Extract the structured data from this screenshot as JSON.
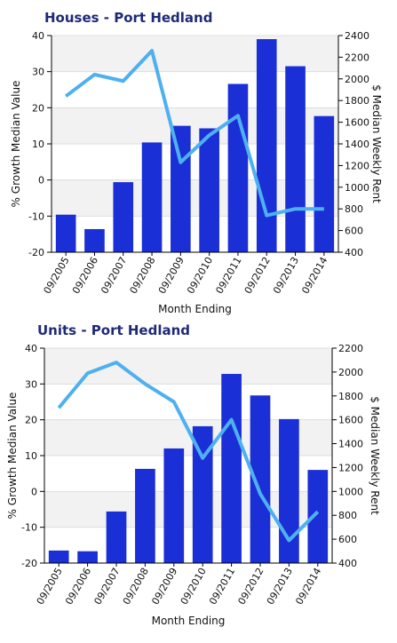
{
  "colors": {
    "bar": "#1a2fd6",
    "line": "#4fb0f0",
    "title": "#1e2a78",
    "band": "#f2f2f2",
    "grid": "#dddddd",
    "text": "#111111"
  },
  "chart_data": [
    {
      "type": "bar",
      "title": "Houses - Port Hedland",
      "xlabel": "Month Ending",
      "ylabel": "% Growth Median Value",
      "y2label": "$ Median Weekly Rent",
      "categories": [
        "09/2005",
        "09/2006",
        "09/2007",
        "09/2008",
        "09/2009",
        "09/2010",
        "09/2011",
        "09/2012",
        "09/2013",
        "09/2014"
      ],
      "ylim": [
        -20,
        40
      ],
      "yticks": [
        -20,
        -10,
        0,
        10,
        20,
        30,
        40
      ],
      "y2lim": [
        400,
        2400
      ],
      "y2ticks": [
        400,
        600,
        800,
        1000,
        1200,
        1400,
        1600,
        1800,
        2000,
        2200,
        2400
      ],
      "grid": true,
      "bands": true,
      "series": [
        {
          "kind": "bar",
          "axis": "left",
          "values": [
            -9.6,
            -13.6,
            -0.6,
            10.4,
            15.0,
            14.3,
            26.6,
            39.0,
            31.5,
            17.7
          ]
        },
        {
          "kind": "line",
          "axis": "right",
          "values": [
            1840,
            2040,
            1980,
            2260,
            1230,
            1480,
            1660,
            740,
            800,
            800
          ]
        }
      ]
    },
    {
      "type": "bar",
      "title": "Units - Port Hedland",
      "xlabel": "Month Ending",
      "ylabel": "% Growth Median Value",
      "y2label": "$ Median Weekly Rent",
      "categories": [
        "09/2005",
        "09/2006",
        "09/2007",
        "09/2008",
        "09/2009",
        "09/2010",
        "09/2011",
        "09/2012",
        "09/2013",
        "09/2014"
      ],
      "ylim": [
        -20,
        40
      ],
      "yticks": [
        -20,
        -10,
        0,
        10,
        20,
        30,
        40
      ],
      "y2lim": [
        400,
        2200
      ],
      "y2ticks": [
        400,
        600,
        800,
        1000,
        1200,
        1400,
        1600,
        1800,
        2000,
        2200
      ],
      "grid": true,
      "bands": true,
      "series": [
        {
          "kind": "bar",
          "axis": "left",
          "values": [
            -16.5,
            -16.7,
            -5.6,
            6.3,
            12.0,
            18.2,
            32.8,
            26.8,
            20.2,
            6.0
          ]
        },
        {
          "kind": "line",
          "axis": "right",
          "values": [
            1700,
            1990,
            2080,
            1900,
            1750,
            1280,
            1600,
            980,
            590,
            830
          ]
        }
      ]
    }
  ]
}
